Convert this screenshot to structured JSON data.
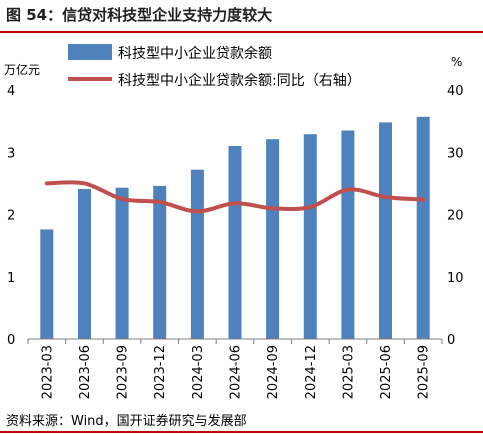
{
  "figure": {
    "title": "图 54：信贷对科技型企业支持力度较大",
    "source": "资料来源：Wind，国开证券研究与发展部"
  },
  "colors": {
    "bar": "#4f81bd",
    "line": "#c0504d",
    "title_rule": "#c00000"
  },
  "chart_data": {
    "type": "bar",
    "categories": [
      "2023-03",
      "2023-06",
      "2023-09",
      "2023-12",
      "2024-03",
      "2024-06",
      "2024-09",
      "2024-12",
      "2025-03",
      "2025-06",
      "2025-09"
    ],
    "series": [
      {
        "name": "科技型中小企业贷款余额",
        "type": "bar",
        "axis": "left",
        "values": [
          1.76,
          2.41,
          2.43,
          2.46,
          2.72,
          3.1,
          3.21,
          3.29,
          3.35,
          3.48,
          3.57
        ]
      },
      {
        "name": "科技型中小企业贷款余额:同比（右轴）",
        "type": "line",
        "axis": "right",
        "values": [
          25.0,
          25.0,
          22.5,
          22.0,
          20.5,
          21.8,
          21.0,
          21.2,
          24.0,
          22.8,
          22.4
        ]
      }
    ],
    "left_axis": {
      "unit": "万亿元",
      "ylim": [
        0,
        4
      ],
      "ticks": [
        0,
        1,
        2,
        3,
        4
      ]
    },
    "right_axis": {
      "unit": "%",
      "ylim": [
        0,
        40
      ],
      "ticks": [
        0,
        10,
        20,
        30,
        40
      ]
    },
    "legend_position": "top-left",
    "grid": false
  }
}
